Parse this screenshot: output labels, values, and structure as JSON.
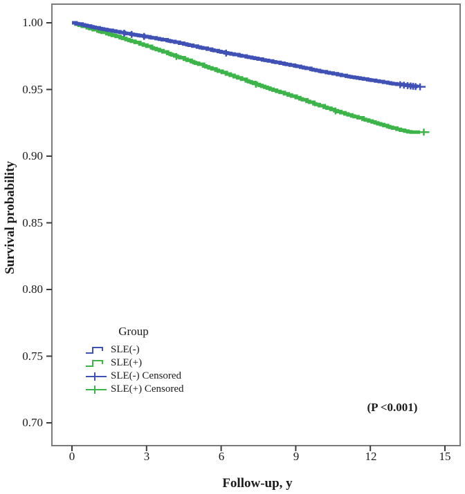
{
  "axes": {
    "x_label": "Follow-up, y",
    "y_label": "Survival probability"
  },
  "legend": {
    "title": "Group",
    "items": [
      "SLE(-)",
      "SLE(+)",
      "SLE(-) Censored",
      "SLE(+) Censored"
    ]
  },
  "colors": {
    "frame": "#7a7a7a",
    "tick": "#3a3a3a",
    "text": "#1a1a1a"
  },
  "chart_data": {
    "type": "line",
    "subtype": "kaplan-meier-step",
    "title": "",
    "xlabel": "Follow-up, y",
    "ylabel": "Survival probability",
    "xlim": [
      -0.85,
      15.6
    ],
    "ylim": [
      0.683,
      1.015
    ],
    "xticks": [
      0,
      3,
      6,
      9,
      12,
      15
    ],
    "yticks": [
      1.0,
      0.95,
      0.9,
      0.85,
      0.8,
      0.75,
      0.7
    ],
    "xtick_labels": [
      "0",
      "3",
      "6",
      "9",
      "12",
      "15"
    ],
    "ytick_labels": [
      "1.00",
      "0.95",
      "0.90",
      "0.85",
      "0.80",
      "0.75",
      "0.70"
    ],
    "grid": false,
    "legend_position": "lower-left-inside",
    "annotation": "(P <0.001)",
    "series": [
      {
        "name": "SLE(+)",
        "color": "#3cb44a",
        "points": [
          [
            0,
            1.0
          ],
          [
            0.3,
            0.998
          ],
          [
            1,
            0.994
          ],
          [
            2,
            0.9885
          ],
          [
            3,
            0.9825
          ],
          [
            4,
            0.976
          ],
          [
            5,
            0.9695
          ],
          [
            6,
            0.963
          ],
          [
            7,
            0.9565
          ],
          [
            8,
            0.95
          ],
          [
            9,
            0.944
          ],
          [
            10,
            0.9375
          ],
          [
            11,
            0.9315
          ],
          [
            12,
            0.926
          ],
          [
            12.8,
            0.9215
          ],
          [
            13.3,
            0.919
          ],
          [
            13.6,
            0.918
          ],
          [
            14.0,
            0.918
          ]
        ],
        "censored_t": [
          4.2,
          7.4,
          10.6
        ],
        "end_plus_t": 14.15
      },
      {
        "name": "SLE(-)",
        "color": "#3f51b5",
        "points": [
          [
            0,
            1.0
          ],
          [
            0.4,
            0.9985
          ],
          [
            1,
            0.996
          ],
          [
            2,
            0.9925
          ],
          [
            3,
            0.9895
          ],
          [
            4,
            0.986
          ],
          [
            5,
            0.982
          ],
          [
            6,
            0.978
          ],
          [
            7,
            0.9745
          ],
          [
            8,
            0.971
          ],
          [
            9,
            0.9675
          ],
          [
            10,
            0.9635
          ],
          [
            11,
            0.96
          ],
          [
            12,
            0.957
          ],
          [
            13,
            0.954
          ],
          [
            13.9,
            0.952
          ]
        ],
        "censored_t": [
          2.1,
          2.4,
          2.9,
          6.2,
          13.2,
          13.35,
          13.5,
          13.62,
          13.72,
          13.82
        ],
        "end_plus_t": 14.0
      }
    ]
  }
}
